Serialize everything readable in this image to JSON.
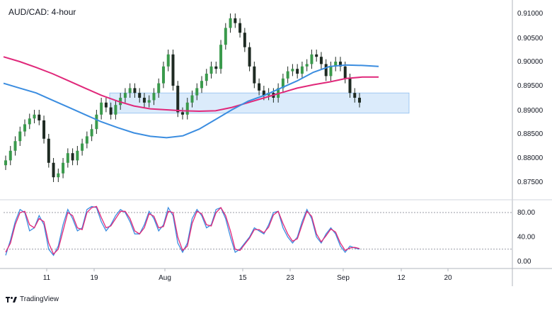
{
  "chart_data": [
    {
      "type": "candlestick",
      "title": "AUD/CAD: 4-hour",
      "ylim": [
        0.8735,
        0.9115
      ],
      "y_ticks": [
        "0.91000",
        "0.90500",
        "0.90000",
        "0.89500",
        "0.89000",
        "0.88500",
        "0.88000",
        "0.87500"
      ],
      "x_ticks": [
        "11",
        "19",
        "Aug",
        "15",
        "23",
        "Sep",
        "12",
        "20"
      ],
      "close": [
        0.8795,
        0.8815,
        0.8835,
        0.8855,
        0.887,
        0.8882,
        0.889,
        0.8878,
        0.884,
        0.879,
        0.876,
        0.8768,
        0.879,
        0.881,
        0.8795,
        0.8815,
        0.883,
        0.8845,
        0.886,
        0.889,
        0.8915,
        0.8905,
        0.889,
        0.891,
        0.8925,
        0.8935,
        0.8945,
        0.8935,
        0.8925,
        0.8915,
        0.892,
        0.8935,
        0.8955,
        0.899,
        0.9015,
        0.895,
        0.8895,
        0.889,
        0.8915,
        0.893,
        0.8945,
        0.896,
        0.8975,
        0.899,
        0.8985,
        0.9035,
        0.907,
        0.909,
        0.908,
        0.906,
        0.903,
        0.899,
        0.8955,
        0.894,
        0.893,
        0.8935,
        0.8925,
        0.8945,
        0.8965,
        0.898,
        0.8985,
        0.8975,
        0.899,
        0.8995,
        0.9015,
        0.901,
        0.8995,
        0.897,
        0.899,
        0.9,
        0.899,
        0.8965,
        0.8935,
        0.8925,
        0.8915
      ],
      "legend": [],
      "moving_average_fast": [
        0.8955,
        0.8945,
        0.8935,
        0.892,
        0.8905,
        0.889,
        0.8875,
        0.8863,
        0.8852,
        0.8845,
        0.8842,
        0.8846,
        0.886,
        0.888,
        0.89,
        0.8918,
        0.893,
        0.8945,
        0.896,
        0.8978,
        0.899,
        0.8993,
        0.8992,
        0.899
      ],
      "moving_average_slow": [
        0.901,
        0.9,
        0.8988,
        0.8975,
        0.896,
        0.8945,
        0.893,
        0.8918,
        0.8908,
        0.8902,
        0.89,
        0.8898,
        0.8897,
        0.8898,
        0.8905,
        0.8915,
        0.8925,
        0.8935,
        0.8945,
        0.8952,
        0.8958,
        0.8965,
        0.8968,
        0.8968
      ],
      "highlight_zone": [
        0.8893,
        0.8935
      ]
    },
    {
      "type": "line",
      "ylim": [
        0,
        100
      ],
      "y_ticks": [
        "80.00",
        "40.00",
        "0.00"
      ],
      "levels": [
        80,
        20
      ],
      "series": [
        {
          "values": [
            10,
            35,
            65,
            85,
            80,
            50,
            55,
            75,
            60,
            20,
            10,
            25,
            60,
            85,
            70,
            50,
            55,
            85,
            90,
            88,
            65,
            50,
            60,
            75,
            85,
            80,
            65,
            45,
            45,
            60,
            82,
            70,
            50,
            60,
            88,
            75,
            30,
            15,
            30,
            70,
            85,
            75,
            55,
            60,
            85,
            88,
            70,
            40,
            15,
            20,
            30,
            40,
            55,
            50,
            45,
            60,
            80,
            82,
            55,
            40,
            30,
            40,
            65,
            85,
            70,
            40,
            30,
            45,
            55,
            45,
            25,
            15,
            25,
            22,
            20
          ]
        },
        {
          "values": [
            15,
            30,
            60,
            80,
            82,
            60,
            55,
            70,
            65,
            30,
            12,
            20,
            50,
            80,
            75,
            55,
            52,
            80,
            88,
            90,
            72,
            55,
            58,
            70,
            82,
            82,
            70,
            50,
            45,
            55,
            78,
            74,
            55,
            57,
            82,
            80,
            40,
            18,
            25,
            62,
            82,
            78,
            60,
            58,
            80,
            88,
            75,
            50,
            20,
            18,
            28,
            38,
            52,
            52,
            47,
            56,
            76,
            82,
            62,
            45,
            33,
            37,
            60,
            82,
            74,
            45,
            32,
            42,
            53,
            48,
            30,
            18,
            22,
            23,
            21
          ]
        }
      ]
    }
  ],
  "brand": {
    "label": "TradingView"
  }
}
